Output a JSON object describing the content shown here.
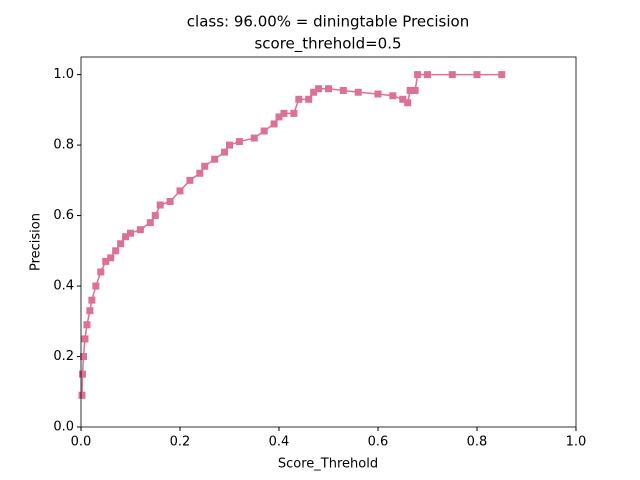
{
  "chart_data": {
    "type": "line",
    "title": "class: 96.00% = diningtable Precision",
    "subtitle": "score_threhold=0.5",
    "x_label": "Score_Threhold",
    "y_label": "Precision",
    "xlim": [
      0,
      1
    ],
    "ylim": [
      0,
      1.05
    ],
    "xticks": [
      {
        "value": 0,
        "label": "0.0"
      },
      0.2,
      0.4,
      0.6,
      0.8,
      {
        "value": 1,
        "label": "1.0"
      }
    ],
    "yticks": [
      {
        "value": 0,
        "label": "0.0"
      },
      0.2,
      0.4,
      0.6,
      0.8,
      {
        "value": 1,
        "label": "1.0"
      }
    ],
    "grid": false,
    "series": [
      {
        "name": "diningtable",
        "color": "#dc7096",
        "x": [
          0.002,
          0.003,
          0.005,
          0.008,
          0.012,
          0.018,
          0.022,
          0.03,
          0.04,
          0.05,
          0.06,
          0.07,
          0.08,
          0.09,
          0.1,
          0.12,
          0.14,
          0.15,
          0.16,
          0.18,
          0.2,
          0.22,
          0.24,
          0.25,
          0.27,
          0.29,
          0.3,
          0.32,
          0.35,
          0.37,
          0.39,
          0.4,
          0.41,
          0.43,
          0.44,
          0.46,
          0.47,
          0.48,
          0.5,
          0.53,
          0.56,
          0.6,
          0.63,
          0.65,
          0.66,
          0.665,
          0.675,
          0.68,
          0.7,
          0.75,
          0.8,
          0.85
        ],
        "values": [
          0.09,
          0.15,
          0.2,
          0.25,
          0.29,
          0.33,
          0.36,
          0.4,
          0.44,
          0.47,
          0.48,
          0.5,
          0.52,
          0.54,
          0.55,
          0.56,
          0.58,
          0.6,
          0.63,
          0.64,
          0.67,
          0.7,
          0.72,
          0.74,
          0.76,
          0.78,
          0.8,
          0.81,
          0.82,
          0.84,
          0.86,
          0.88,
          0.89,
          0.89,
          0.93,
          0.93,
          0.95,
          0.96,
          0.96,
          0.955,
          0.95,
          0.945,
          0.94,
          0.93,
          0.92,
          0.955,
          0.955,
          1.0,
          1.0,
          1.0,
          1.0,
          1.0
        ]
      }
    ]
  }
}
